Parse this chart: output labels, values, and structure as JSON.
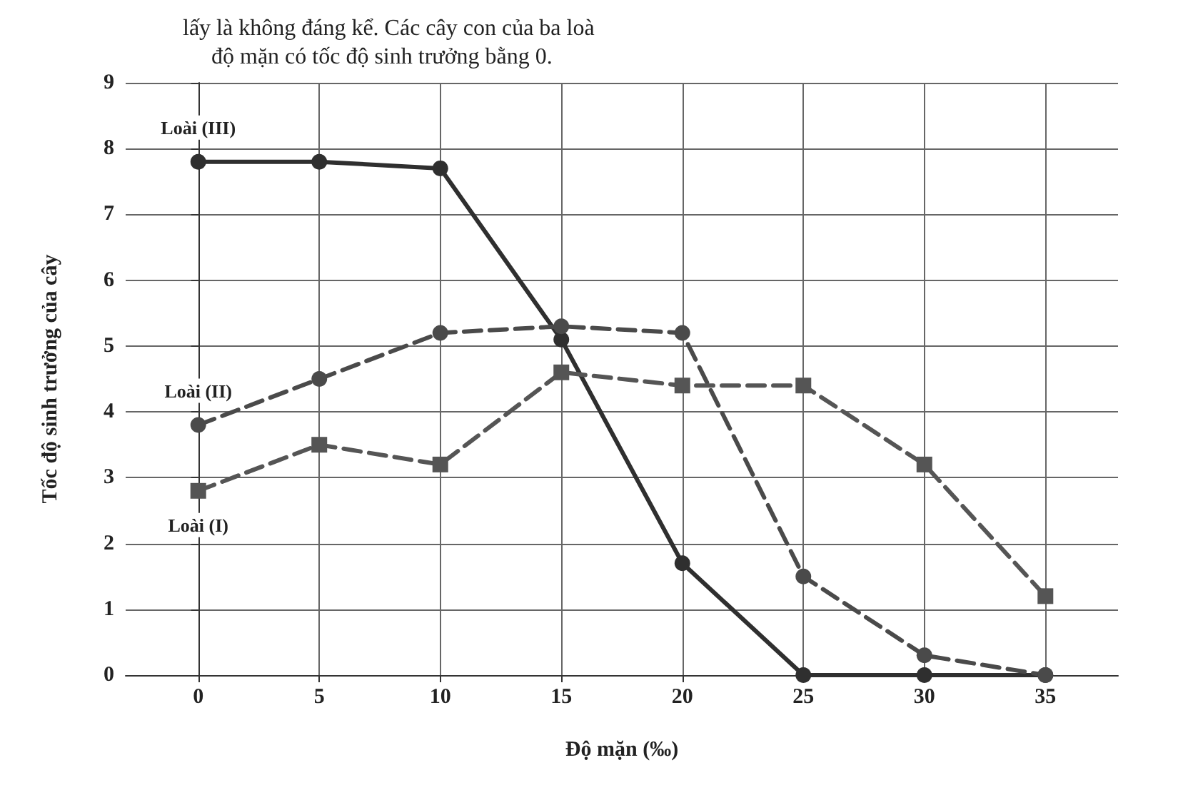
{
  "chart_data": {
    "type": "line",
    "xlabel": "Độ mặn (‰)",
    "ylabel": "Tốc độ sinh trưởng của cây",
    "annotations": [
      "lấy là không đáng kể. Các cây con của ba loà",
      "độ mặn có tốc độ sinh trưởng bằng 0."
    ],
    "x": [
      0,
      5,
      10,
      15,
      20,
      25,
      30,
      35
    ],
    "series": [
      {
        "name": "Loài (III)",
        "color": "#2f2f2f",
        "marker": "circle",
        "line_style": "solid",
        "values": [
          7.8,
          7.8,
          7.7,
          5.1,
          1.7,
          0,
          0,
          0
        ]
      },
      {
        "name": "Loài (II)",
        "color": "#4a4a4a",
        "marker": "circle",
        "line_style": "dashed",
        "values": [
          3.8,
          4.5,
          5.2,
          5.3,
          5.2,
          1.5,
          0.3,
          0
        ]
      },
      {
        "name": "Loài (I)",
        "color": "#555555",
        "marker": "square",
        "line_style": "dashed",
        "values": [
          2.8,
          3.5,
          3.2,
          4.6,
          4.4,
          4.4,
          3.2,
          1.2
        ]
      }
    ],
    "xlim": [
      -3,
      38
    ],
    "xticks": [
      0,
      5,
      10,
      15,
      20,
      25,
      30,
      35
    ],
    "ylim": [
      0,
      9
    ],
    "yticks": [
      0,
      1,
      2,
      3,
      4,
      5,
      6,
      7,
      8,
      9
    ],
    "grid": true,
    "legend": false
  }
}
